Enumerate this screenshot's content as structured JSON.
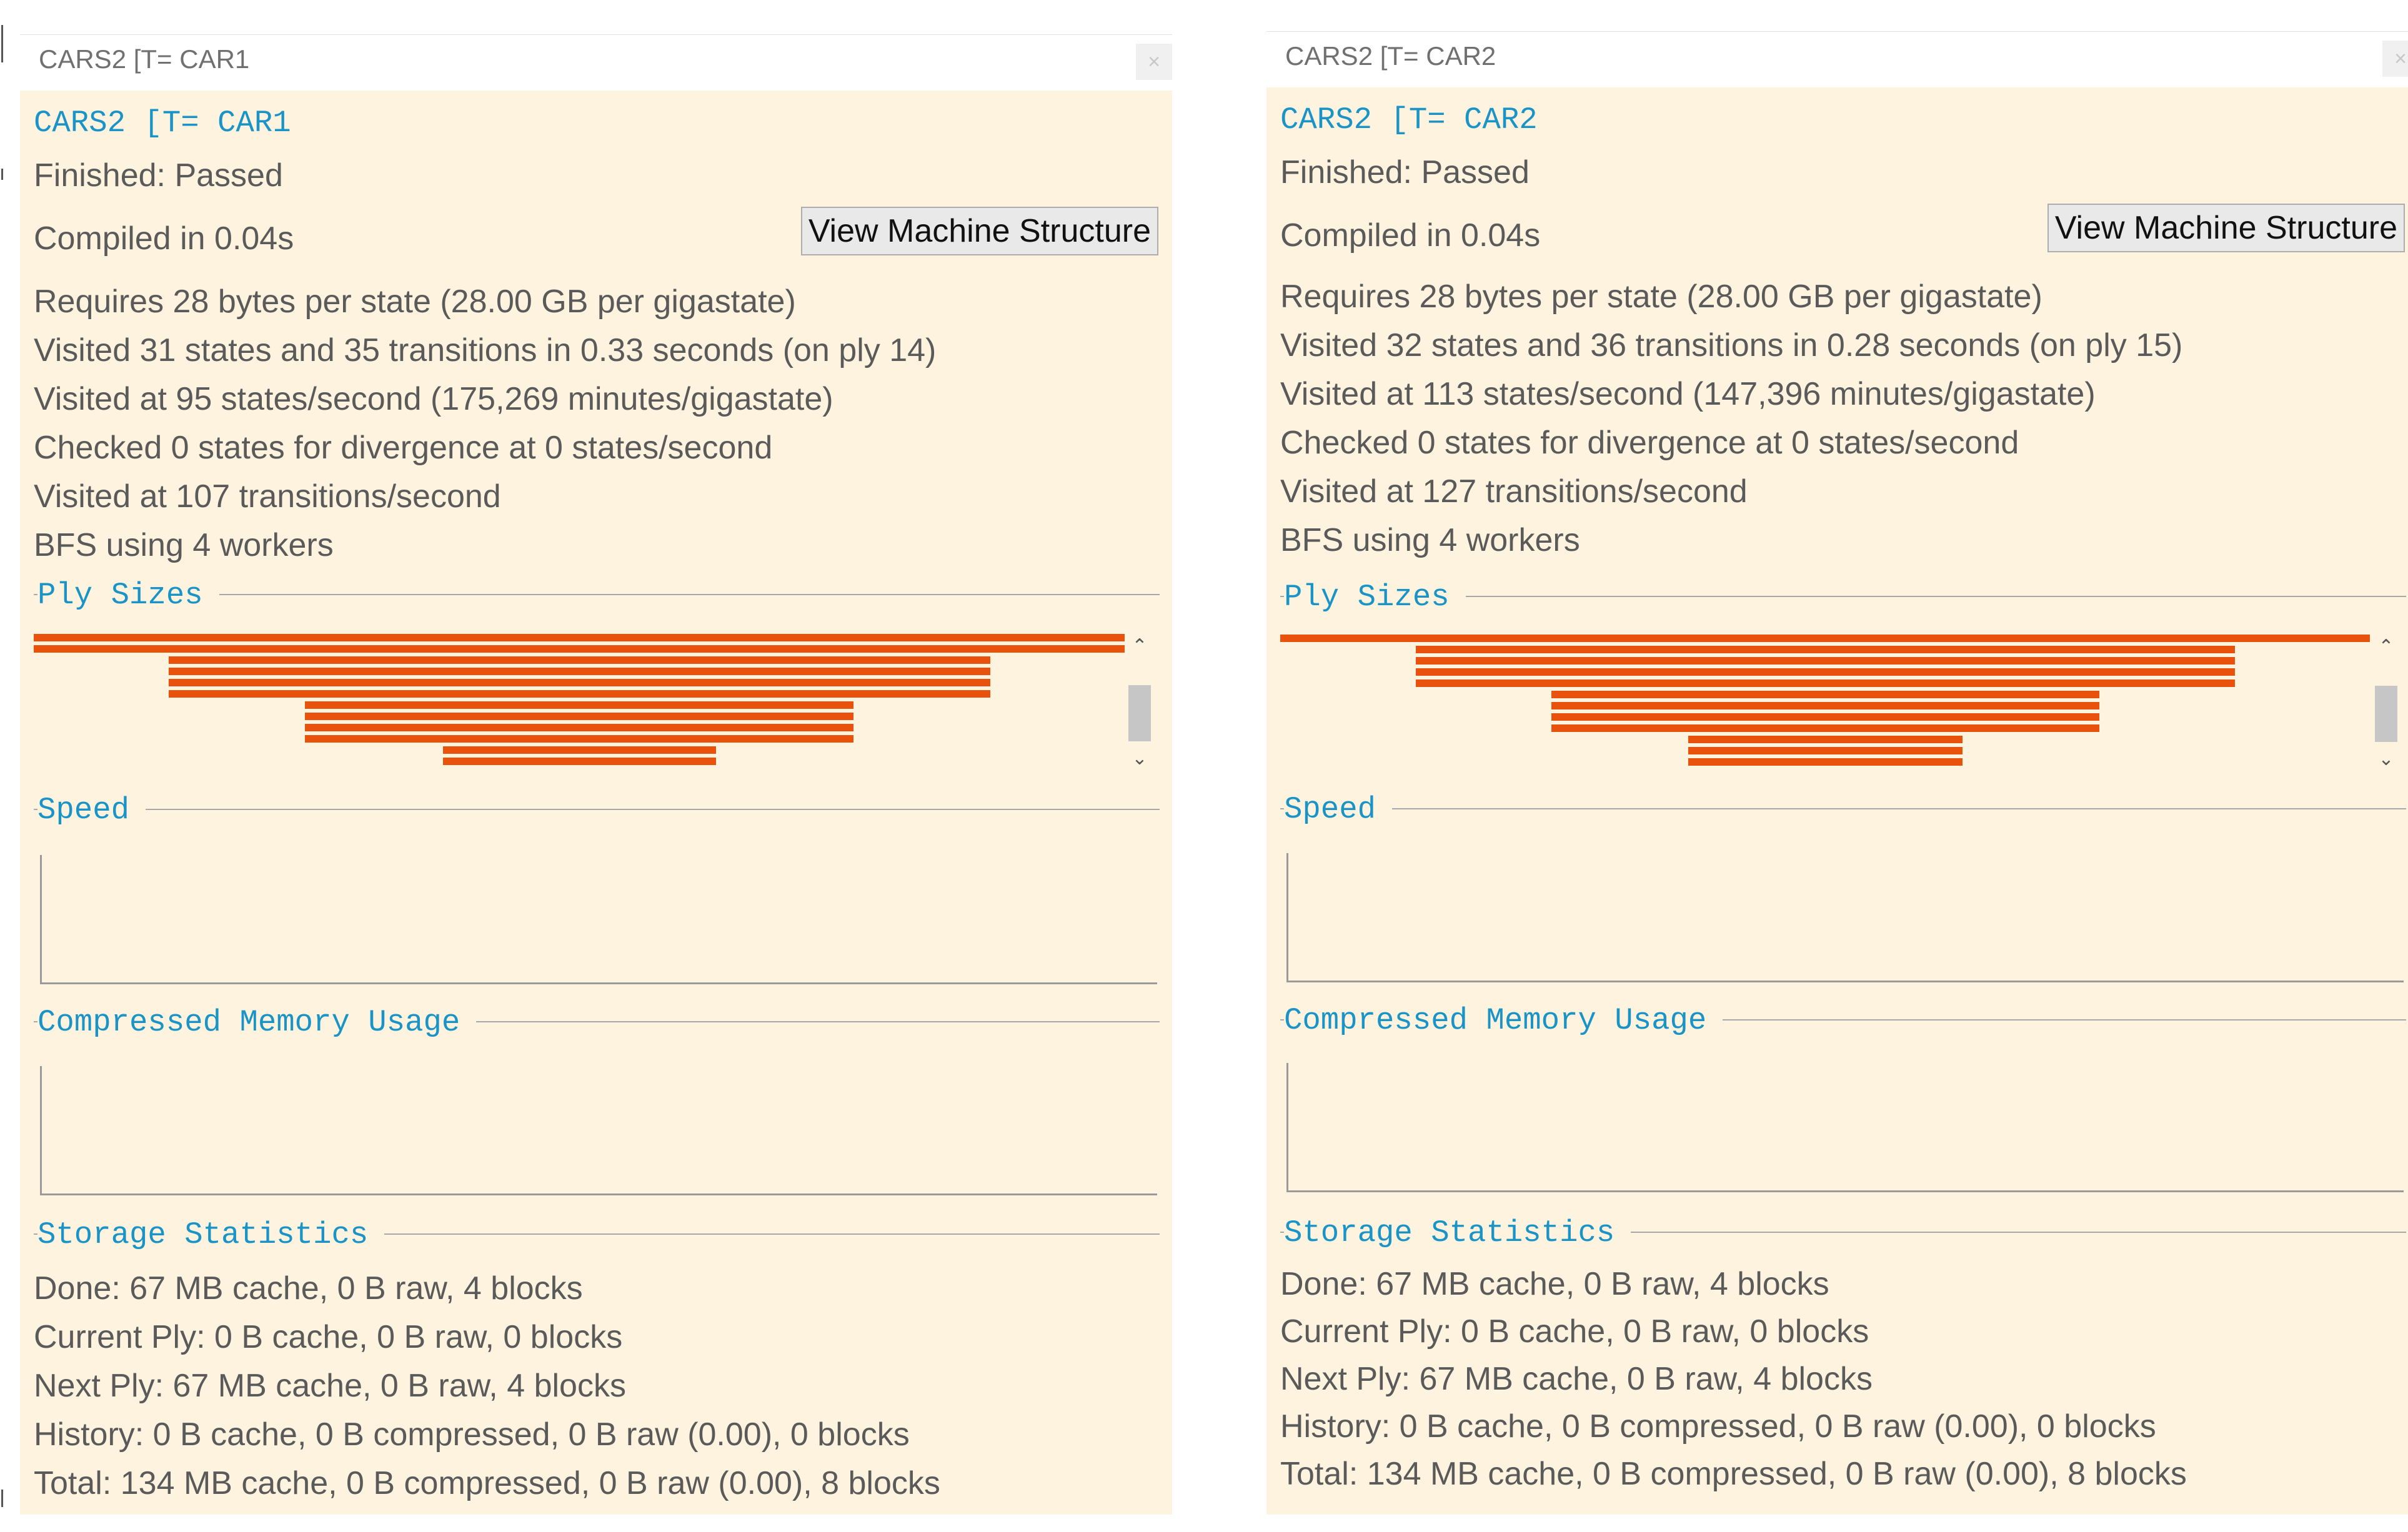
{
  "panels": [
    {
      "window_title": "CARS2 [T= CAR1",
      "header": "CARS2 [T= CAR1",
      "status": "Finished: Passed",
      "compiled": "Compiled in 0.04s",
      "view_button": "View Machine Structure",
      "stats": [
        "Requires 28 bytes per state (28.00 GB per gigastate)",
        "Visited 31 states and 35 transitions in 0.33 seconds (on ply 14)",
        "Visited at 95 states/second (175,269 minutes/gigastate)",
        "Checked 0 states for divergence at 0 states/second",
        "Visited at 107 transitions/second",
        "BFS using 4 workers"
      ],
      "sections": {
        "ply_sizes": "Ply Sizes",
        "speed": "Speed",
        "memory": "Compressed Memory Usage",
        "storage": "Storage Statistics"
      },
      "ply_widths": [
        1,
        1,
        0.753,
        0.753,
        0.753,
        0.753,
        0.503,
        0.503,
        0.503,
        0.503,
        0.25,
        0.25
      ],
      "storage_lines": [
        "Done: 67 MB cache, 0 B raw, 4 blocks",
        "Current Ply: 0 B cache, 0 B raw, 0 blocks",
        "Next Ply: 67 MB cache, 0 B raw, 4 blocks",
        "History: 0 B cache, 0 B compressed, 0 B raw (0.00), 0 blocks",
        "Total: 134 MB cache, 0 B compressed, 0 B raw (0.00), 8 blocks"
      ]
    },
    {
      "window_title": "CARS2 [T= CAR2",
      "header": "CARS2 [T= CAR2",
      "status": "Finished: Passed",
      "compiled": "Compiled in 0.04s",
      "view_button": "View Machine Structure",
      "stats": [
        "Requires 28 bytes per state (28.00 GB per gigastate)",
        "Visited 32 states and 36 transitions in 0.28 seconds (on ply 15)",
        "Visited at 113 states/second (147,396 minutes/gigastate)",
        "Checked 0 states for divergence at 0 states/second",
        "Visited at 127 transitions/second",
        "BFS using 4 workers"
      ],
      "sections": {
        "ply_sizes": "Ply Sizes",
        "speed": "Speed",
        "memory": "Compressed Memory Usage",
        "storage": "Storage Statistics"
      },
      "ply_widths": [
        1,
        0.752,
        0.752,
        0.752,
        0.752,
        0.503,
        0.503,
        0.503,
        0.503,
        0.252,
        0.252,
        0.252
      ],
      "storage_lines": [
        "Done: 67 MB cache, 0 B raw, 4 blocks",
        "Current Ply: 0 B cache, 0 B raw, 0 blocks",
        "Next Ply: 67 MB cache, 0 B raw, 4 blocks",
        "History: 0 B cache, 0 B compressed, 0 B raw (0.00), 0 blocks",
        "Total: 134 MB cache, 0 B compressed, 0 B raw (0.00), 8 blocks"
      ]
    }
  ],
  "icons": {
    "close": "close-icon",
    "scroll_up": "chevron-up-icon",
    "scroll_down": "chevron-down-icon"
  },
  "colors": {
    "bar": "#e9520d",
    "panel_bg": "#fdf3de",
    "heading": "#1a93c7"
  }
}
